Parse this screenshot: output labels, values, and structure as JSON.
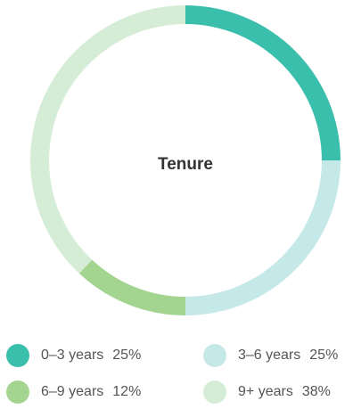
{
  "chart_data": {
    "type": "pie",
    "title": "Tenure",
    "categories": [
      "0–3 years",
      "3–6 years",
      "6–9 years",
      "9+ years"
    ],
    "values": [
      25,
      25,
      12,
      38
    ],
    "value_labels": [
      "25%",
      "25%",
      "12%",
      "38%"
    ],
    "colors": [
      "#3bbfad",
      "#c5e8e8",
      "#a3d490",
      "#d5ecd6"
    ]
  }
}
